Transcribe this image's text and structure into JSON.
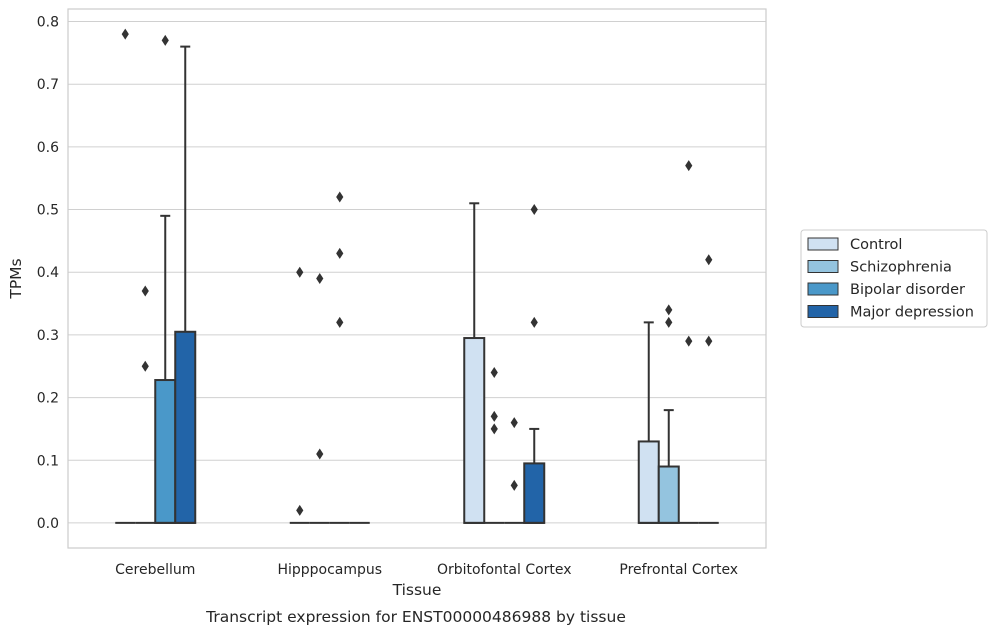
{
  "chart_data": {
    "type": "boxplot",
    "caption": "Transcript expression for ENST00000486988 by tissue",
    "xlabel": "Tissue",
    "ylabel": "TPMs",
    "ylim": [
      -0.04,
      0.82
    ],
    "yticks": [
      "0.0",
      "0.1",
      "0.2",
      "0.3",
      "0.4",
      "0.5",
      "0.6",
      "0.7",
      "0.8"
    ],
    "grid": true,
    "legend_position": "right",
    "categories": [
      "Cerebellum",
      "Hipppocampus",
      "Orbitofontal Cortex",
      "Prefrontal Cortex"
    ],
    "series": [
      {
        "name": "Control",
        "color": "#d0e1f2",
        "boxes": [
          {
            "q1": 0,
            "q3": 0,
            "median": 0,
            "whisker_high": 0,
            "outliers": [
              0.78
            ]
          },
          {
            "q1": 0,
            "q3": 0,
            "median": 0,
            "whisker_high": 0,
            "outliers": [
              0.02,
              0.4
            ]
          },
          {
            "q1": 0,
            "q3": 0.295,
            "median": 0,
            "whisker_high": 0.51,
            "outliers": []
          },
          {
            "q1": 0,
            "q3": 0.13,
            "median": 0,
            "whisker_high": 0.32,
            "outliers": []
          }
        ]
      },
      {
        "name": "Schizophrenia",
        "color": "#94c4df",
        "boxes": [
          {
            "q1": 0,
            "q3": 0,
            "median": 0,
            "whisker_high": 0,
            "outliers": [
              0.25,
              0.37
            ]
          },
          {
            "q1": 0,
            "q3": 0,
            "median": 0,
            "whisker_high": 0,
            "outliers": [
              0.11,
              0.39
            ]
          },
          {
            "q1": 0,
            "q3": 0,
            "median": 0,
            "whisker_high": 0,
            "outliers": [
              0.15,
              0.17,
              0.24
            ]
          },
          {
            "q1": 0,
            "q3": 0.09,
            "median": 0,
            "whisker_high": 0.18,
            "outliers": [
              0.32,
              0.34
            ]
          }
        ]
      },
      {
        "name": "Bipolar disorder",
        "color": "#4a98c9",
        "boxes": [
          {
            "q1": 0,
            "q3": 0.228,
            "median": 0,
            "whisker_high": 0.49,
            "outliers": [
              0.77
            ]
          },
          {
            "q1": 0,
            "q3": 0,
            "median": 0,
            "whisker_high": 0,
            "outliers": [
              0.32,
              0.43,
              0.52
            ]
          },
          {
            "q1": 0,
            "q3": 0,
            "median": 0,
            "whisker_high": 0,
            "outliers": [
              0.06,
              0.16
            ]
          },
          {
            "q1": 0,
            "q3": 0,
            "median": 0,
            "whisker_high": 0,
            "outliers": [
              0.29,
              0.57
            ]
          }
        ]
      },
      {
        "name": "Major depression",
        "color": "#2264a8",
        "boxes": [
          {
            "q1": 0,
            "q3": 0.305,
            "median": 0,
            "whisker_high": 0.76,
            "outliers": []
          },
          {
            "q1": 0,
            "q3": 0,
            "median": 0,
            "whisker_high": 0,
            "outliers": []
          },
          {
            "q1": 0,
            "q3": 0.095,
            "median": 0,
            "whisker_high": 0.15,
            "outliers": [
              0.32,
              0.5
            ]
          },
          {
            "q1": 0,
            "q3": 0,
            "median": 0,
            "whisker_high": 0,
            "outliers": [
              0.29,
              0.42
            ]
          }
        ]
      }
    ]
  }
}
